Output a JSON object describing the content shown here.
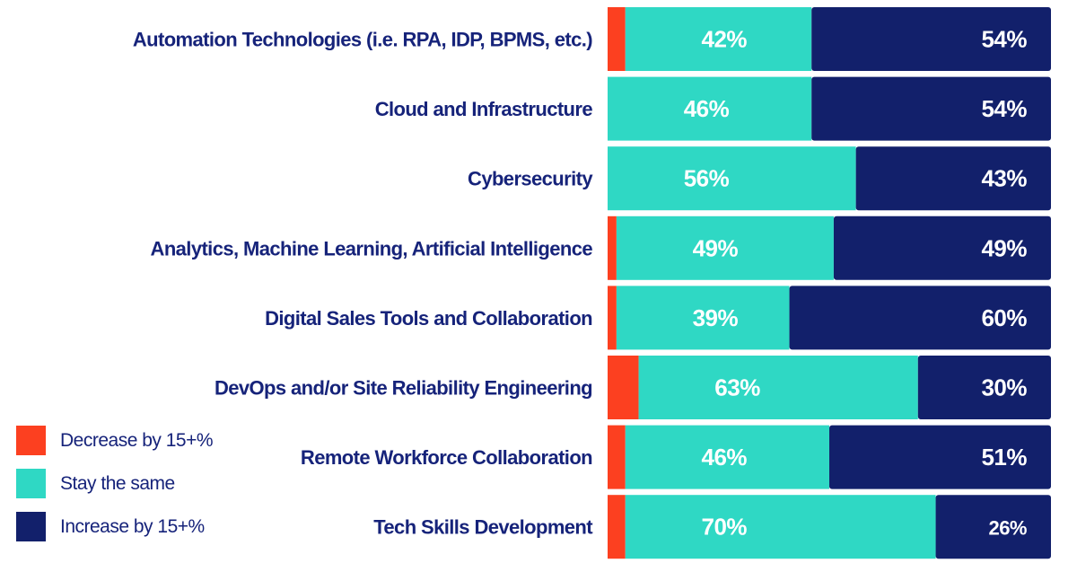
{
  "chart_data": {
    "type": "bar",
    "orientation": "horizontal",
    "stacked": true,
    "categories": [
      "Automation Technologies (i.e. RPA, IDP, BPMS, etc.)",
      "Cloud and Infrastructure",
      "Cybersecurity",
      "Analytics, Machine Learning, Artificial Intelligence",
      "Digital Sales Tools and Collaboration",
      "DevOps and/or Site Reliability Engineering",
      "Remote Workforce Collaboration",
      "Tech Skills Development"
    ],
    "series": [
      {
        "name": "Decrease by 15+%",
        "color": "#fc4020",
        "values": [
          4,
          0,
          0,
          2,
          2,
          7,
          4,
          4
        ],
        "labels_shown": false
      },
      {
        "name": "Stay the same",
        "color": "#2fd8c4",
        "values": [
          42,
          46,
          56,
          49,
          39,
          63,
          46,
          70
        ],
        "labels_shown": true
      },
      {
        "name": "Increase by 15+%",
        "color": "#12206b",
        "values": [
          54,
          54,
          43,
          49,
          60,
          30,
          51,
          26
        ],
        "labels_shown": true
      }
    ],
    "value_suffix": "%",
    "xlim": [
      0,
      100
    ],
    "grid": false,
    "legend_position": "bottom-left"
  }
}
